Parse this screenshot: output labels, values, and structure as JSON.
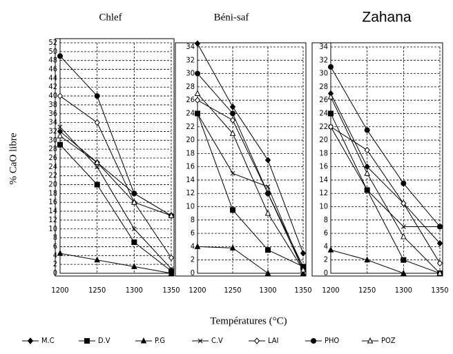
{
  "y_label": "% CaO libre",
  "x_label": "Températures (°C)",
  "chart_data": [
    {
      "type": "line",
      "title": "Chlef",
      "x": [
        1200,
        1250,
        1300,
        1350
      ],
      "xlim": [
        1200,
        1350
      ],
      "xticks": [
        1200,
        1250,
        1300,
        1350
      ],
      "ylim": [
        0,
        52
      ],
      "yticks": [
        0,
        2,
        4,
        6,
        8,
        10,
        12,
        14,
        16,
        18,
        20,
        22,
        24,
        26,
        28,
        30,
        32,
        34,
        36,
        38,
        40,
        42,
        44,
        46,
        48,
        50,
        52
      ],
      "grid": true,
      "series": [
        {
          "name": "M.C",
          "color": "#000000",
          "marker": "diamond",
          "values": [
            32,
            25,
            18,
            13
          ]
        },
        {
          "name": "D.V",
          "color": "#000000",
          "marker": "square",
          "values": [
            29,
            20,
            7,
            0.5
          ]
        },
        {
          "name": "P.G",
          "color": "#000000",
          "marker": "triangle",
          "values": [
            4.5,
            3,
            1.5,
            0
          ]
        },
        {
          "name": "C.V",
          "color": "#000000",
          "marker": "x",
          "values": [
            33,
            24,
            10,
            1
          ]
        },
        {
          "name": "LAI",
          "color": "#000000",
          "marker": "open-diamond",
          "values": [
            40,
            34,
            16,
            3.5
          ]
        },
        {
          "name": "PHO",
          "color": "#000000",
          "marker": "circle",
          "values": [
            49,
            40,
            18,
            13
          ]
        },
        {
          "name": "POZ",
          "color": "#000000",
          "marker": "open-triangle",
          "values": [
            31,
            25,
            16,
            13
          ]
        }
      ]
    },
    {
      "type": "line",
      "title": "Béni-saf",
      "x": [
        1200,
        1250,
        1300,
        1350
      ],
      "xlim": [
        1200,
        1350
      ],
      "xticks": [
        1200,
        1250,
        1300,
        1350
      ],
      "ylim": [
        0,
        34
      ],
      "yticks": [
        0,
        2,
        4,
        6,
        8,
        10,
        12,
        14,
        16,
        18,
        20,
        22,
        24,
        26,
        28,
        30,
        32,
        34
      ],
      "grid": true,
      "series": [
        {
          "name": "M.C",
          "color": "#000000",
          "marker": "diamond",
          "values": [
            34.5,
            25,
            17,
            3
          ]
        },
        {
          "name": "D.V",
          "color": "#000000",
          "marker": "square",
          "values": [
            24,
            9.5,
            3.5,
            1
          ]
        },
        {
          "name": "P.G",
          "color": "#000000",
          "marker": "triangle",
          "values": [
            4,
            3.8,
            0,
            0
          ]
        },
        {
          "name": "C.V",
          "color": "#000000",
          "marker": "x",
          "values": [
            24,
            15,
            13,
            0.5
          ]
        },
        {
          "name": "LAI",
          "color": "#000000",
          "marker": "open-diamond",
          "values": [
            26,
            23,
            12,
            0.5
          ]
        },
        {
          "name": "PHO",
          "color": "#000000",
          "marker": "circle",
          "values": [
            30,
            24,
            12,
            1
          ]
        },
        {
          "name": "POZ",
          "color": "#000000",
          "marker": "open-triangle",
          "values": [
            27,
            21,
            9,
            0.5
          ]
        }
      ]
    },
    {
      "type": "line",
      "title": "Zahana",
      "x": [
        1200,
        1250,
        1300,
        1350
      ],
      "xlim": [
        1200,
        1350
      ],
      "xticks": [
        1200,
        1250,
        1300,
        1350
      ],
      "ylim": [
        0,
        34
      ],
      "yticks": [
        0,
        2,
        4,
        6,
        8,
        10,
        12,
        14,
        16,
        18,
        20,
        22,
        24,
        26,
        28,
        30,
        32,
        34
      ],
      "grid": true,
      "series": [
        {
          "name": "M.C",
          "color": "#000000",
          "marker": "diamond",
          "values": [
            27,
            16,
            10.5,
            4.5
          ]
        },
        {
          "name": "D.V",
          "color": "#000000",
          "marker": "square",
          "values": [
            24,
            12.5,
            2,
            0
          ]
        },
        {
          "name": "P.G",
          "color": "#000000",
          "marker": "triangle",
          "values": [
            3.5,
            2,
            0,
            0
          ]
        },
        {
          "name": "C.V",
          "color": "#000000",
          "marker": "x",
          "values": [
            22,
            12.5,
            7,
            7
          ]
        },
        {
          "name": "LAI",
          "color": "#000000",
          "marker": "open-diamond",
          "values": [
            22,
            18.5,
            10.5,
            1.5
          ]
        },
        {
          "name": "PHO",
          "color": "#000000",
          "marker": "circle",
          "values": [
            31,
            21.5,
            13.5,
            7
          ]
        },
        {
          "name": "POZ",
          "color": "#000000",
          "marker": "open-triangle",
          "values": [
            26.5,
            15,
            5.5,
            0
          ]
        }
      ]
    }
  ]
}
